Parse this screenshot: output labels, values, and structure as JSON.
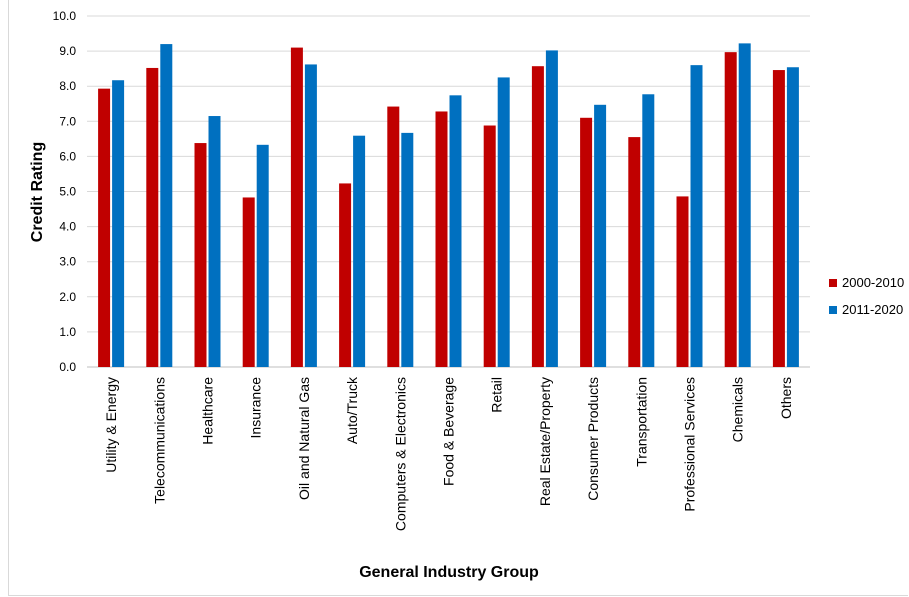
{
  "chart_data": {
    "type": "bar",
    "title": "",
    "xlabel": "General Industry Group",
    "ylabel": "Credit Rating",
    "ylim": [
      0,
      10
    ],
    "yticks": [
      "0.0",
      "1.0",
      "2.0",
      "3.0",
      "4.0",
      "5.0",
      "6.0",
      "7.0",
      "8.0",
      "9.0",
      "10.0"
    ],
    "grid": true,
    "legend_position": "right",
    "categories": [
      "Utility & Energy",
      "Telecommunications",
      "Healthcare",
      "Insurance",
      "Oil and Natural Gas",
      "Auto/Truck",
      "Computers & Electronics",
      "Food & Beverage",
      "Retail",
      "Real Estate/Property",
      "Consumer Products",
      "Transportation",
      "Professional Services",
      "Chemicals",
      "Others"
    ],
    "series": [
      {
        "name": "2000-2010",
        "color": "#c00000",
        "values": [
          7.93,
          8.52,
          6.38,
          4.83,
          9.1,
          5.23,
          7.42,
          7.28,
          6.88,
          8.57,
          7.1,
          6.55,
          4.86,
          8.97,
          8.46
        ]
      },
      {
        "name": "2011-2020",
        "color": "#0070c0",
        "values": [
          8.17,
          9.2,
          7.15,
          6.33,
          8.62,
          6.59,
          6.67,
          7.74,
          8.25,
          9.02,
          7.47,
          7.77,
          8.6,
          9.22,
          8.54
        ]
      }
    ]
  }
}
